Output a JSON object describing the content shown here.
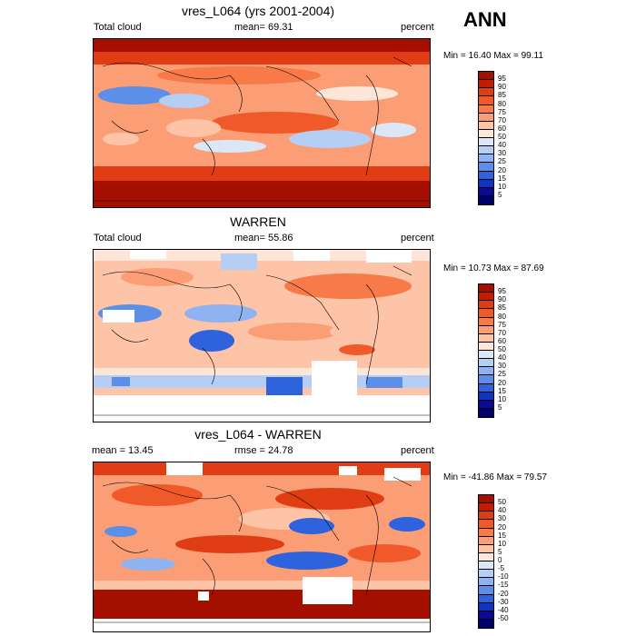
{
  "season": "ANN",
  "panels": [
    {
      "title": "vres_L064 (yrs 2001-2004)",
      "left_label": "Total cloud",
      "center_label": "mean=  69.31",
      "right_label": "percent",
      "minmax": "Min =  16.40 Max =  99.11",
      "colorbar": {
        "labels": [
          "95",
          "90",
          "85",
          "80",
          "75",
          "70",
          "60",
          "50",
          "40",
          "30",
          "25",
          "20",
          "15",
          "10",
          "5"
        ],
        "colors": [
          "#a50f00",
          "#c41c00",
          "#e13d14",
          "#f05a2a",
          "#f77a48",
          "#fb9e76",
          "#fdc4a8",
          "#fde6d8",
          "#dbe7f7",
          "#b5cef4",
          "#8eb3f0",
          "#5b8fe8",
          "#2f62dd",
          "#1133c2",
          "#0a0a96",
          "#00006e"
        ]
      }
    },
    {
      "title": "WARREN",
      "left_label": "Total cloud",
      "center_label": "mean=  55.86",
      "right_label": "percent",
      "minmax": "Min =  10.73 Max =  87.69",
      "colorbar": {
        "labels": [
          "95",
          "90",
          "85",
          "80",
          "75",
          "70",
          "60",
          "50",
          "40",
          "30",
          "25",
          "20",
          "15",
          "10",
          "5"
        ],
        "colors": [
          "#a50f00",
          "#c41c00",
          "#e13d14",
          "#f05a2a",
          "#f77a48",
          "#fb9e76",
          "#fdc4a8",
          "#fde6d8",
          "#dbe7f7",
          "#b5cef4",
          "#8eb3f0",
          "#5b8fe8",
          "#2f62dd",
          "#1133c2",
          "#0a0a96",
          "#00006e"
        ]
      }
    },
    {
      "title": "vres_L064 - WARREN",
      "left_label": "mean =  13.45",
      "center_label": "rmse =  24.78",
      "right_label": "percent",
      "minmax": "Min = -41.86 Max =  79.57",
      "colorbar": {
        "labels": [
          "50",
          "40",
          "30",
          "20",
          "15",
          "10",
          "5",
          "0",
          "-5",
          "-10",
          "-15",
          "-20",
          "-30",
          "-40",
          "-50"
        ],
        "colors": [
          "#a50f00",
          "#c41c00",
          "#e13d14",
          "#f05a2a",
          "#f77a48",
          "#fb9e76",
          "#fdc4a8",
          "#fde6d8",
          "#dbe7f7",
          "#b5cef4",
          "#8eb3f0",
          "#5b8fe8",
          "#2f62dd",
          "#1133c2",
          "#0a0a96",
          "#00006e"
        ]
      }
    }
  ]
}
